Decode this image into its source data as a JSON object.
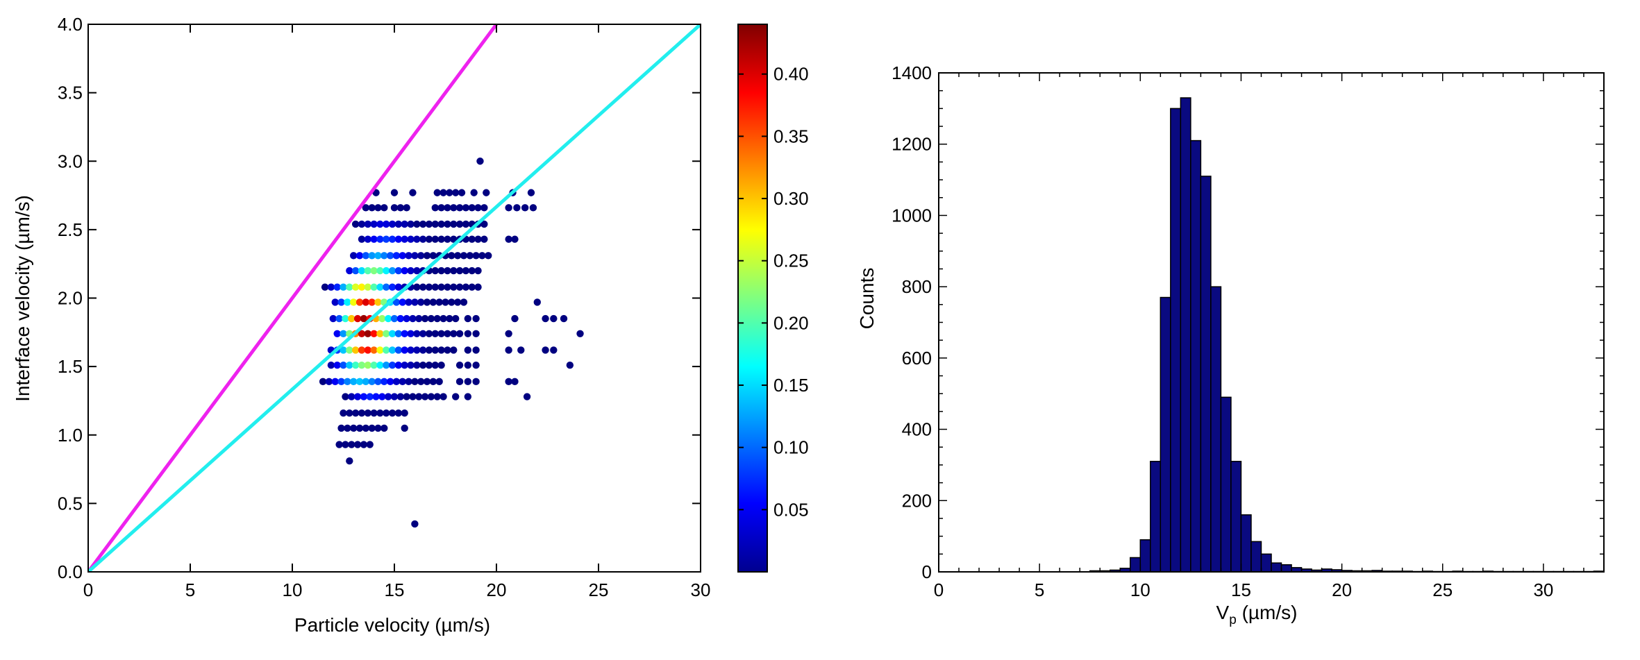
{
  "chart_data": [
    {
      "type": "scatter",
      "title": "",
      "xlabel": "Particle velocity (µm/s)",
      "ylabel": "Interface velocity (µm/s)",
      "xlim": [
        0,
        30
      ],
      "ylim": [
        0,
        4.0
      ],
      "xticks": [
        "0",
        "5",
        "10",
        "15",
        "20",
        "25",
        "30"
      ],
      "yticks": [
        "0.0",
        "0.5",
        "1.0",
        "1.5",
        "2.0",
        "2.5",
        "3.0",
        "3.5",
        "4.0"
      ],
      "grid": false,
      "colorbar": {
        "colormap": "jet",
        "range": [
          0,
          0.44
        ],
        "ticks": [
          "0.05",
          "0.10",
          "0.15",
          "0.20",
          "0.25",
          "0.30",
          "0.35",
          "0.40"
        ]
      },
      "lines": [
        {
          "color": "#ee22ee",
          "x": [
            0,
            20
          ],
          "y": [
            0,
            4.0
          ]
        },
        {
          "color": "#22eeee",
          "x": [
            0,
            30
          ],
          "y": [
            0,
            4.0
          ]
        }
      ],
      "rows": [
        {
          "y": 0.35,
          "x": [
            16.0
          ],
          "d": [
            0.0
          ]
        },
        {
          "y": 0.81,
          "x": [
            12.8
          ],
          "d": [
            0.0
          ]
        },
        {
          "y": 0.93,
          "x": [
            12.3,
            12.6,
            12.9,
            13.2,
            13.5,
            13.8
          ],
          "d": [
            0.0,
            0.0,
            0.0,
            0.0,
            0.0,
            0.0
          ]
        },
        {
          "y": 1.05,
          "x": [
            12.4,
            12.7,
            13.0,
            13.3,
            13.6,
            13.9,
            14.2,
            14.5
          ],
          "d": [
            0.0,
            0.0,
            0.0,
            0.0,
            0.0,
            0.0,
            0.0,
            0.0
          ]
        },
        {
          "y": 1.16,
          "x": [
            12.5,
            12.8,
            13.1,
            13.4,
            13.7,
            14.0,
            14.3,
            14.6,
            14.9,
            15.2,
            15.5
          ],
          "d": [
            0.0,
            0.0,
            0.0,
            0.0,
            0.0,
            0.0,
            0.0,
            0.0,
            0.0,
            0.0,
            0.0
          ]
        },
        {
          "y": 1.05,
          "x": [
            15.5
          ],
          "d": [
            0.0
          ]
        },
        {
          "y": 1.28,
          "x": [
            12.6,
            12.9,
            13.2,
            13.5,
            13.8,
            14.1,
            14.4,
            14.7,
            15.0,
            15.3,
            15.6,
            15.9,
            16.2,
            16.5,
            16.8,
            17.1,
            17.4,
            18.0,
            18.6,
            21.5
          ],
          "d": [
            0.0,
            0.02,
            0.04,
            0.06,
            0.07,
            0.06,
            0.05,
            0.03,
            0.02,
            0.01,
            0.0,
            0.0,
            0.0,
            0.0,
            0.0,
            0.0,
            0.0,
            0.0,
            0.0,
            0.0
          ]
        },
        {
          "y": 1.39,
          "x": [
            11.5,
            11.8,
            12.1,
            12.4,
            12.7,
            13.0,
            13.3,
            13.6,
            13.9,
            14.2,
            14.5,
            14.8,
            15.1,
            15.4,
            15.7,
            16.0,
            16.3,
            16.6,
            16.9,
            17.2,
            18.2,
            18.6,
            19.0,
            20.6,
            20.9
          ],
          "d": [
            0.0,
            0.02,
            0.05,
            0.08,
            0.11,
            0.13,
            0.14,
            0.13,
            0.11,
            0.09,
            0.07,
            0.05,
            0.03,
            0.02,
            0.01,
            0.0,
            0.0,
            0.0,
            0.0,
            0.0,
            0.0,
            0.0,
            0.0,
            0.0,
            0.0
          ]
        },
        {
          "y": 1.51,
          "x": [
            11.9,
            12.2,
            12.5,
            12.8,
            13.1,
            13.4,
            13.7,
            14.0,
            14.3,
            14.6,
            14.9,
            15.2,
            15.5,
            15.8,
            16.1,
            16.4,
            16.7,
            17.0,
            17.3,
            18.2,
            18.6,
            19.0,
            23.6
          ],
          "d": [
            0.02,
            0.05,
            0.09,
            0.14,
            0.19,
            0.22,
            0.23,
            0.2,
            0.16,
            0.12,
            0.08,
            0.05,
            0.03,
            0.02,
            0.01,
            0.0,
            0.0,
            0.0,
            0.0,
            0.0,
            0.0,
            0.0,
            0.0
          ]
        },
        {
          "y": 1.62,
          "x": [
            11.9,
            12.2,
            12.5,
            12.8,
            13.1,
            13.4,
            13.7,
            14.0,
            14.3,
            14.6,
            14.9,
            15.2,
            15.5,
            15.8,
            16.1,
            16.4,
            16.7,
            17.0,
            17.3,
            17.6,
            17.9,
            18.6,
            19.0,
            20.6,
            21.2,
            22.4,
            22.8
          ],
          "d": [
            0.03,
            0.08,
            0.14,
            0.22,
            0.3,
            0.36,
            0.38,
            0.34,
            0.27,
            0.2,
            0.14,
            0.09,
            0.05,
            0.03,
            0.02,
            0.01,
            0.0,
            0.0,
            0.0,
            0.0,
            0.0,
            0.0,
            0.0,
            0.0,
            0.0,
            0.0,
            0.0
          ]
        },
        {
          "y": 1.74,
          "x": [
            12.2,
            12.5,
            12.8,
            13.1,
            13.4,
            13.7,
            14.0,
            14.3,
            14.6,
            14.9,
            15.2,
            15.5,
            15.8,
            16.1,
            16.4,
            16.7,
            17.0,
            17.3,
            17.6,
            17.9,
            18.2,
            18.6,
            19.0,
            20.6,
            24.1
          ],
          "d": [
            0.05,
            0.12,
            0.22,
            0.33,
            0.41,
            0.43,
            0.38,
            0.3,
            0.22,
            0.15,
            0.1,
            0.06,
            0.04,
            0.02,
            0.01,
            0.0,
            0.0,
            0.0,
            0.0,
            0.0,
            0.0,
            0.0,
            0.0,
            0.0,
            0.0
          ]
        },
        {
          "y": 1.85,
          "x": [
            12.0,
            12.3,
            12.6,
            12.9,
            13.2,
            13.5,
            13.8,
            14.1,
            14.4,
            14.7,
            15.0,
            15.3,
            15.6,
            15.9,
            16.2,
            16.5,
            16.8,
            17.1,
            17.4,
            17.7,
            18.0,
            18.6,
            19.0,
            20.9,
            22.4,
            22.8,
            23.3
          ],
          "d": [
            0.03,
            0.09,
            0.18,
            0.3,
            0.4,
            0.43,
            0.39,
            0.31,
            0.23,
            0.16,
            0.1,
            0.06,
            0.04,
            0.02,
            0.01,
            0.0,
            0.0,
            0.0,
            0.0,
            0.0,
            0.0,
            0.0,
            0.0,
            0.0,
            0.0,
            0.0,
            0.0
          ]
        },
        {
          "y": 1.97,
          "x": [
            12.1,
            12.4,
            12.7,
            13.0,
            13.3,
            13.6,
            13.9,
            14.2,
            14.5,
            14.8,
            15.1,
            15.4,
            15.7,
            16.0,
            16.3,
            16.6,
            16.9,
            17.2,
            17.5,
            17.8,
            18.1,
            18.4,
            22.0
          ],
          "d": [
            0.03,
            0.08,
            0.16,
            0.27,
            0.36,
            0.4,
            0.37,
            0.3,
            0.22,
            0.15,
            0.09,
            0.06,
            0.03,
            0.02,
            0.01,
            0.0,
            0.0,
            0.0,
            0.0,
            0.0,
            0.0,
            0.0,
            0.0
          ]
        },
        {
          "y": 2.08,
          "x": [
            11.6,
            11.9,
            12.2,
            12.5,
            12.8,
            13.1,
            13.4,
            13.7,
            14.0,
            14.3,
            14.6,
            14.9,
            15.2,
            15.5,
            15.8,
            16.1,
            16.4,
            16.7,
            17.0,
            17.3,
            17.6,
            17.9,
            18.2,
            18.5,
            18.8,
            19.1
          ],
          "d": [
            0.0,
            0.03,
            0.07,
            0.13,
            0.2,
            0.26,
            0.28,
            0.25,
            0.2,
            0.15,
            0.1,
            0.07,
            0.04,
            0.02,
            0.01,
            0.0,
            0.0,
            0.0,
            0.0,
            0.0,
            0.0,
            0.0,
            0.0,
            0.0,
            0.0,
            0.0
          ]
        },
        {
          "y": 2.2,
          "x": [
            12.8,
            13.1,
            13.4,
            13.7,
            14.0,
            14.3,
            14.6,
            14.9,
            15.2,
            15.5,
            15.8,
            16.1,
            16.4,
            16.7,
            17.0,
            17.3,
            17.6,
            17.9,
            18.2,
            18.5,
            18.8,
            19.1
          ],
          "d": [
            0.04,
            0.09,
            0.15,
            0.2,
            0.22,
            0.2,
            0.16,
            0.12,
            0.08,
            0.05,
            0.03,
            0.02,
            0.01,
            0.0,
            0.0,
            0.0,
            0.0,
            0.0,
            0.0,
            0.0,
            0.0,
            0.0
          ]
        },
        {
          "y": 2.31,
          "x": [
            13.0,
            13.3,
            13.6,
            13.9,
            14.2,
            14.5,
            14.8,
            15.1,
            15.4,
            15.7,
            16.0,
            16.3,
            16.6,
            16.9,
            17.2,
            17.5,
            17.8,
            18.1,
            18.4,
            18.7,
            19.0,
            19.3,
            19.6
          ],
          "d": [
            0.02,
            0.05,
            0.09,
            0.12,
            0.13,
            0.11,
            0.09,
            0.07,
            0.05,
            0.03,
            0.02,
            0.01,
            0.0,
            0.0,
            0.0,
            0.0,
            0.0,
            0.0,
            0.0,
            0.0,
            0.0,
            0.0,
            0.0
          ]
        },
        {
          "y": 2.43,
          "x": [
            13.4,
            13.7,
            14.0,
            14.3,
            14.6,
            14.9,
            15.2,
            15.5,
            15.8,
            16.1,
            16.4,
            16.7,
            17.0,
            17.3,
            17.6,
            17.9,
            18.2,
            18.5,
            18.8,
            19.1,
            19.4,
            20.6,
            20.9
          ],
          "d": [
            0.01,
            0.03,
            0.05,
            0.07,
            0.08,
            0.07,
            0.05,
            0.04,
            0.03,
            0.02,
            0.01,
            0.0,
            0.0,
            0.0,
            0.0,
            0.0,
            0.0,
            0.0,
            0.0,
            0.0,
            0.0,
            0.0,
            0.0
          ]
        },
        {
          "y": 2.54,
          "x": [
            13.1,
            13.4,
            13.7,
            14.0,
            14.3,
            14.6,
            14.9,
            15.2,
            15.5,
            15.8,
            16.1,
            16.4,
            16.7,
            17.0,
            17.3,
            17.6,
            17.9,
            18.2,
            18.5,
            18.8,
            19.1,
            19.4
          ],
          "d": [
            0.0,
            0.01,
            0.02,
            0.03,
            0.04,
            0.04,
            0.03,
            0.02,
            0.02,
            0.01,
            0.0,
            0.0,
            0.0,
            0.0,
            0.0,
            0.0,
            0.0,
            0.0,
            0.0,
            0.0,
            0.0,
            0.0
          ]
        },
        {
          "y": 2.66,
          "x": [
            13.6,
            13.9,
            14.2,
            14.5,
            15.0,
            15.6,
            17.0,
            17.3,
            17.6,
            17.9,
            18.2,
            18.5,
            18.8,
            19.1,
            19.4,
            20.6,
            21.0,
            21.4,
            21.8
          ],
          "d": [
            0.0,
            0.0,
            0.0,
            0.0,
            0.0,
            0.0,
            0.0,
            0.0,
            0.0,
            0.0,
            0.0,
            0.0,
            0.0,
            0.0,
            0.0,
            0.0,
            0.0,
            0.0,
            0.0
          ]
        },
        {
          "y": 2.77,
          "x": [
            14.1,
            15.0,
            15.9,
            17.1,
            17.4,
            17.7,
            18.0,
            18.3,
            18.9,
            19.5,
            20.8,
            21.7
          ],
          "d": [
            0.0,
            0.0,
            0.0,
            0.0,
            0.0,
            0.0,
            0.0,
            0.0,
            0.0,
            0.0,
            0.0,
            0.0
          ]
        },
        {
          "y": 2.66,
          "x": [
            15.3
          ],
          "d": [
            0.0
          ]
        },
        {
          "y": 3.0,
          "x": [
            19.2
          ],
          "d": [
            0.0
          ]
        }
      ]
    },
    {
      "type": "bar",
      "title": "",
      "xlabel": "V",
      "xlabel_sub": "p",
      "xlabel_unit": " (µm/s)",
      "ylabel": "Counts",
      "xlim": [
        0,
        33
      ],
      "ylim": [
        0,
        1400
      ],
      "xticks": [
        "0",
        "5",
        "10",
        "15",
        "20",
        "25",
        "30"
      ],
      "yticks": [
        "0",
        "200",
        "400",
        "600",
        "800",
        "1000",
        "1200",
        "1400"
      ],
      "bar_color": "#0a0a80",
      "bin_width": 0.5,
      "bin_starts": [
        7.5,
        8.0,
        8.5,
        9.0,
        9.5,
        10.0,
        10.5,
        11.0,
        11.5,
        12.0,
        12.5,
        13.0,
        13.5,
        14.0,
        14.5,
        15.0,
        15.5,
        16.0,
        16.5,
        17.0,
        17.5,
        18.0,
        18.5,
        19.0,
        19.5,
        20.0,
        20.5,
        21.0,
        21.5,
        22.0,
        22.5,
        23.0,
        23.5,
        24.0,
        24.5,
        25.0,
        25.5,
        26.0,
        26.5,
        27.0,
        27.5,
        28.0,
        28.5,
        29.0,
        29.5,
        30.0,
        30.5,
        31.0,
        31.5,
        32.0,
        32.5
      ],
      "counts": [
        3,
        3,
        5,
        10,
        40,
        90,
        310,
        770,
        1300,
        1330,
        1210,
        1110,
        800,
        490,
        310,
        160,
        85,
        50,
        25,
        20,
        12,
        8,
        5,
        8,
        6,
        4,
        3,
        3,
        4,
        2,
        2,
        2,
        1,
        2,
        1,
        1,
        2,
        1,
        1,
        2,
        1,
        1,
        1,
        1,
        1,
        1,
        1,
        1,
        1,
        1,
        2
      ]
    }
  ]
}
